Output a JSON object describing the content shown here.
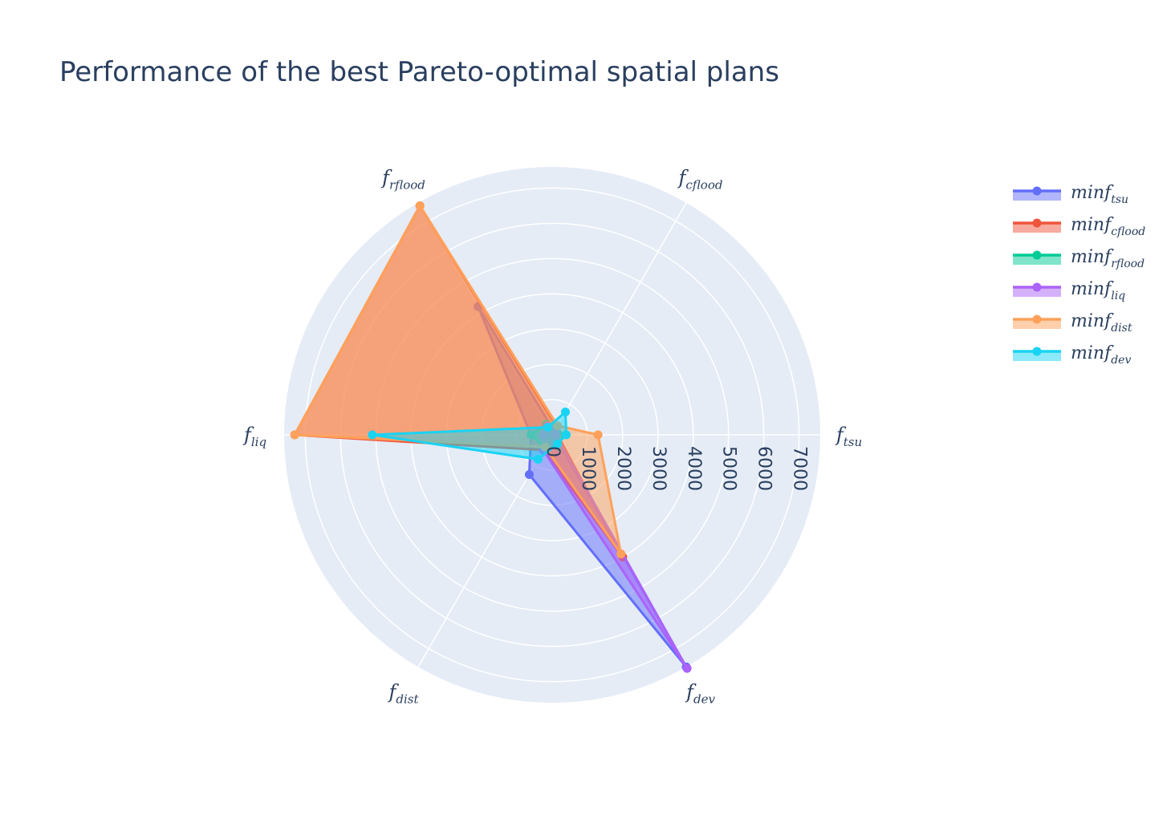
{
  "title": "Performance of the best Pareto-optimal spatial plans",
  "chart_data": {
    "type": "radar",
    "title": "Performance of the best Pareto-optimal spatial plans",
    "radial_range": [
      0,
      7600
    ],
    "radial_ticks": [
      0,
      1000,
      2000,
      3000,
      4000,
      5000,
      6000,
      7000
    ],
    "grid": true,
    "legend_position": "top-right",
    "axes": [
      {
        "base": "f",
        "sub": "tsu"
      },
      {
        "base": "f",
        "sub": "cflood"
      },
      {
        "base": "f",
        "sub": "rflood"
      },
      {
        "base": "f",
        "sub": "liq"
      },
      {
        "base": "f",
        "sub": "dist"
      },
      {
        "base": "f",
        "sub": "dev"
      }
    ],
    "series": [
      {
        "name": "minf_tsu",
        "legend_base": "minf",
        "legend_sub": "tsu",
        "color": "#636efa",
        "values": [
          60,
          120,
          4200,
          600,
          1300,
          7600
        ]
      },
      {
        "name": "minf_cflood",
        "legend_base": "minf",
        "legend_sub": "cflood",
        "color": "#ef553b",
        "values": [
          150,
          250,
          7500,
          7300,
          500,
          4000
        ]
      },
      {
        "name": "minf_rflood",
        "legend_base": "minf",
        "legend_sub": "rflood",
        "color": "#00cc96",
        "values": [
          200,
          250,
          350,
          600,
          400,
          400
        ]
      },
      {
        "name": "minf_liq",
        "legend_base": "minf",
        "legend_sub": "liq",
        "color": "#ab63fa",
        "values": [
          100,
          250,
          300,
          250,
          500,
          7650
        ]
      },
      {
        "name": "minf_dist",
        "legend_base": "minf",
        "legend_sub": "dist",
        "color": "#ffa15a",
        "values": [
          1300,
          300,
          7500,
          7300,
          400,
          3900
        ]
      },
      {
        "name": "minf_dev",
        "legend_base": "minf",
        "legend_sub": "dev",
        "color": "#19d3f3",
        "values": [
          400,
          750,
          250,
          5100,
          800,
          300
        ]
      }
    ]
  }
}
